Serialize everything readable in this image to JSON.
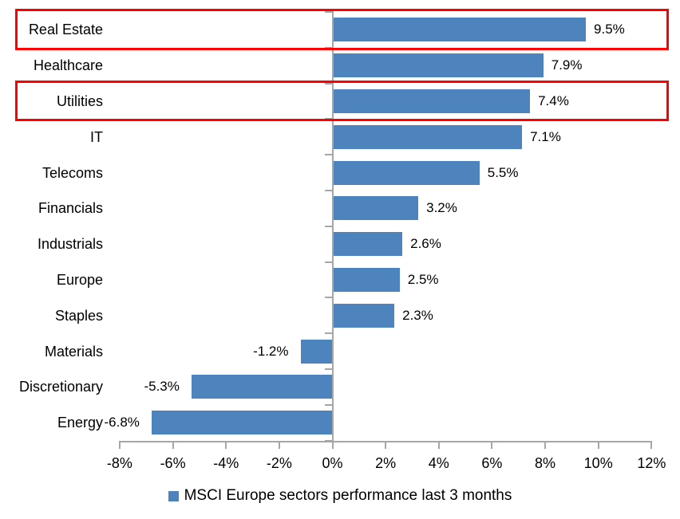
{
  "chart_data": {
    "type": "bar",
    "orientation": "horizontal",
    "title": "",
    "xlabel": "",
    "ylabel": "",
    "categories": [
      "Real Estate",
      "Healthcare",
      "Utilities",
      "IT",
      "Telecoms",
      "Financials",
      "Industrials",
      "Europe",
      "Staples",
      "Materials",
      "Discretionary",
      "Energy"
    ],
    "values": [
      9.5,
      7.9,
      7.4,
      7.1,
      5.5,
      3.2,
      2.6,
      2.5,
      2.3,
      -1.2,
      -5.3,
      -6.8
    ],
    "data_labels": [
      "9.5%",
      "7.9%",
      "7.4%",
      "7.1%",
      "5.5%",
      "3.2%",
      "2.6%",
      "2.5%",
      "2.3%",
      "-1.2%",
      "-5.3%",
      "-6.8%"
    ],
    "xlim": [
      -8,
      12
    ],
    "x_tick_values": [
      -8,
      -6,
      -4,
      -2,
      0,
      2,
      4,
      6,
      8,
      10,
      12
    ],
    "x_tick_labels": [
      "-8%",
      "-6%",
      "-4%",
      "-2%",
      "0%",
      "2%",
      "4%",
      "6%",
      "8%",
      "10%",
      "12%"
    ],
    "grid": false,
    "legend": {
      "position": "bottom",
      "label": "MSCI Europe sectors performance last 3 months"
    },
    "highlighted_indexes": [
      0,
      2
    ],
    "highlighted_categories": [
      "Real Estate",
      "Utilities"
    ]
  },
  "colors": {
    "bar": "#4e84be",
    "legend_marker": "#4e84be",
    "axis": "#a6a6a6",
    "highlight_box": "#ff0000",
    "text": "#000000",
    "background": "#ffffff"
  }
}
